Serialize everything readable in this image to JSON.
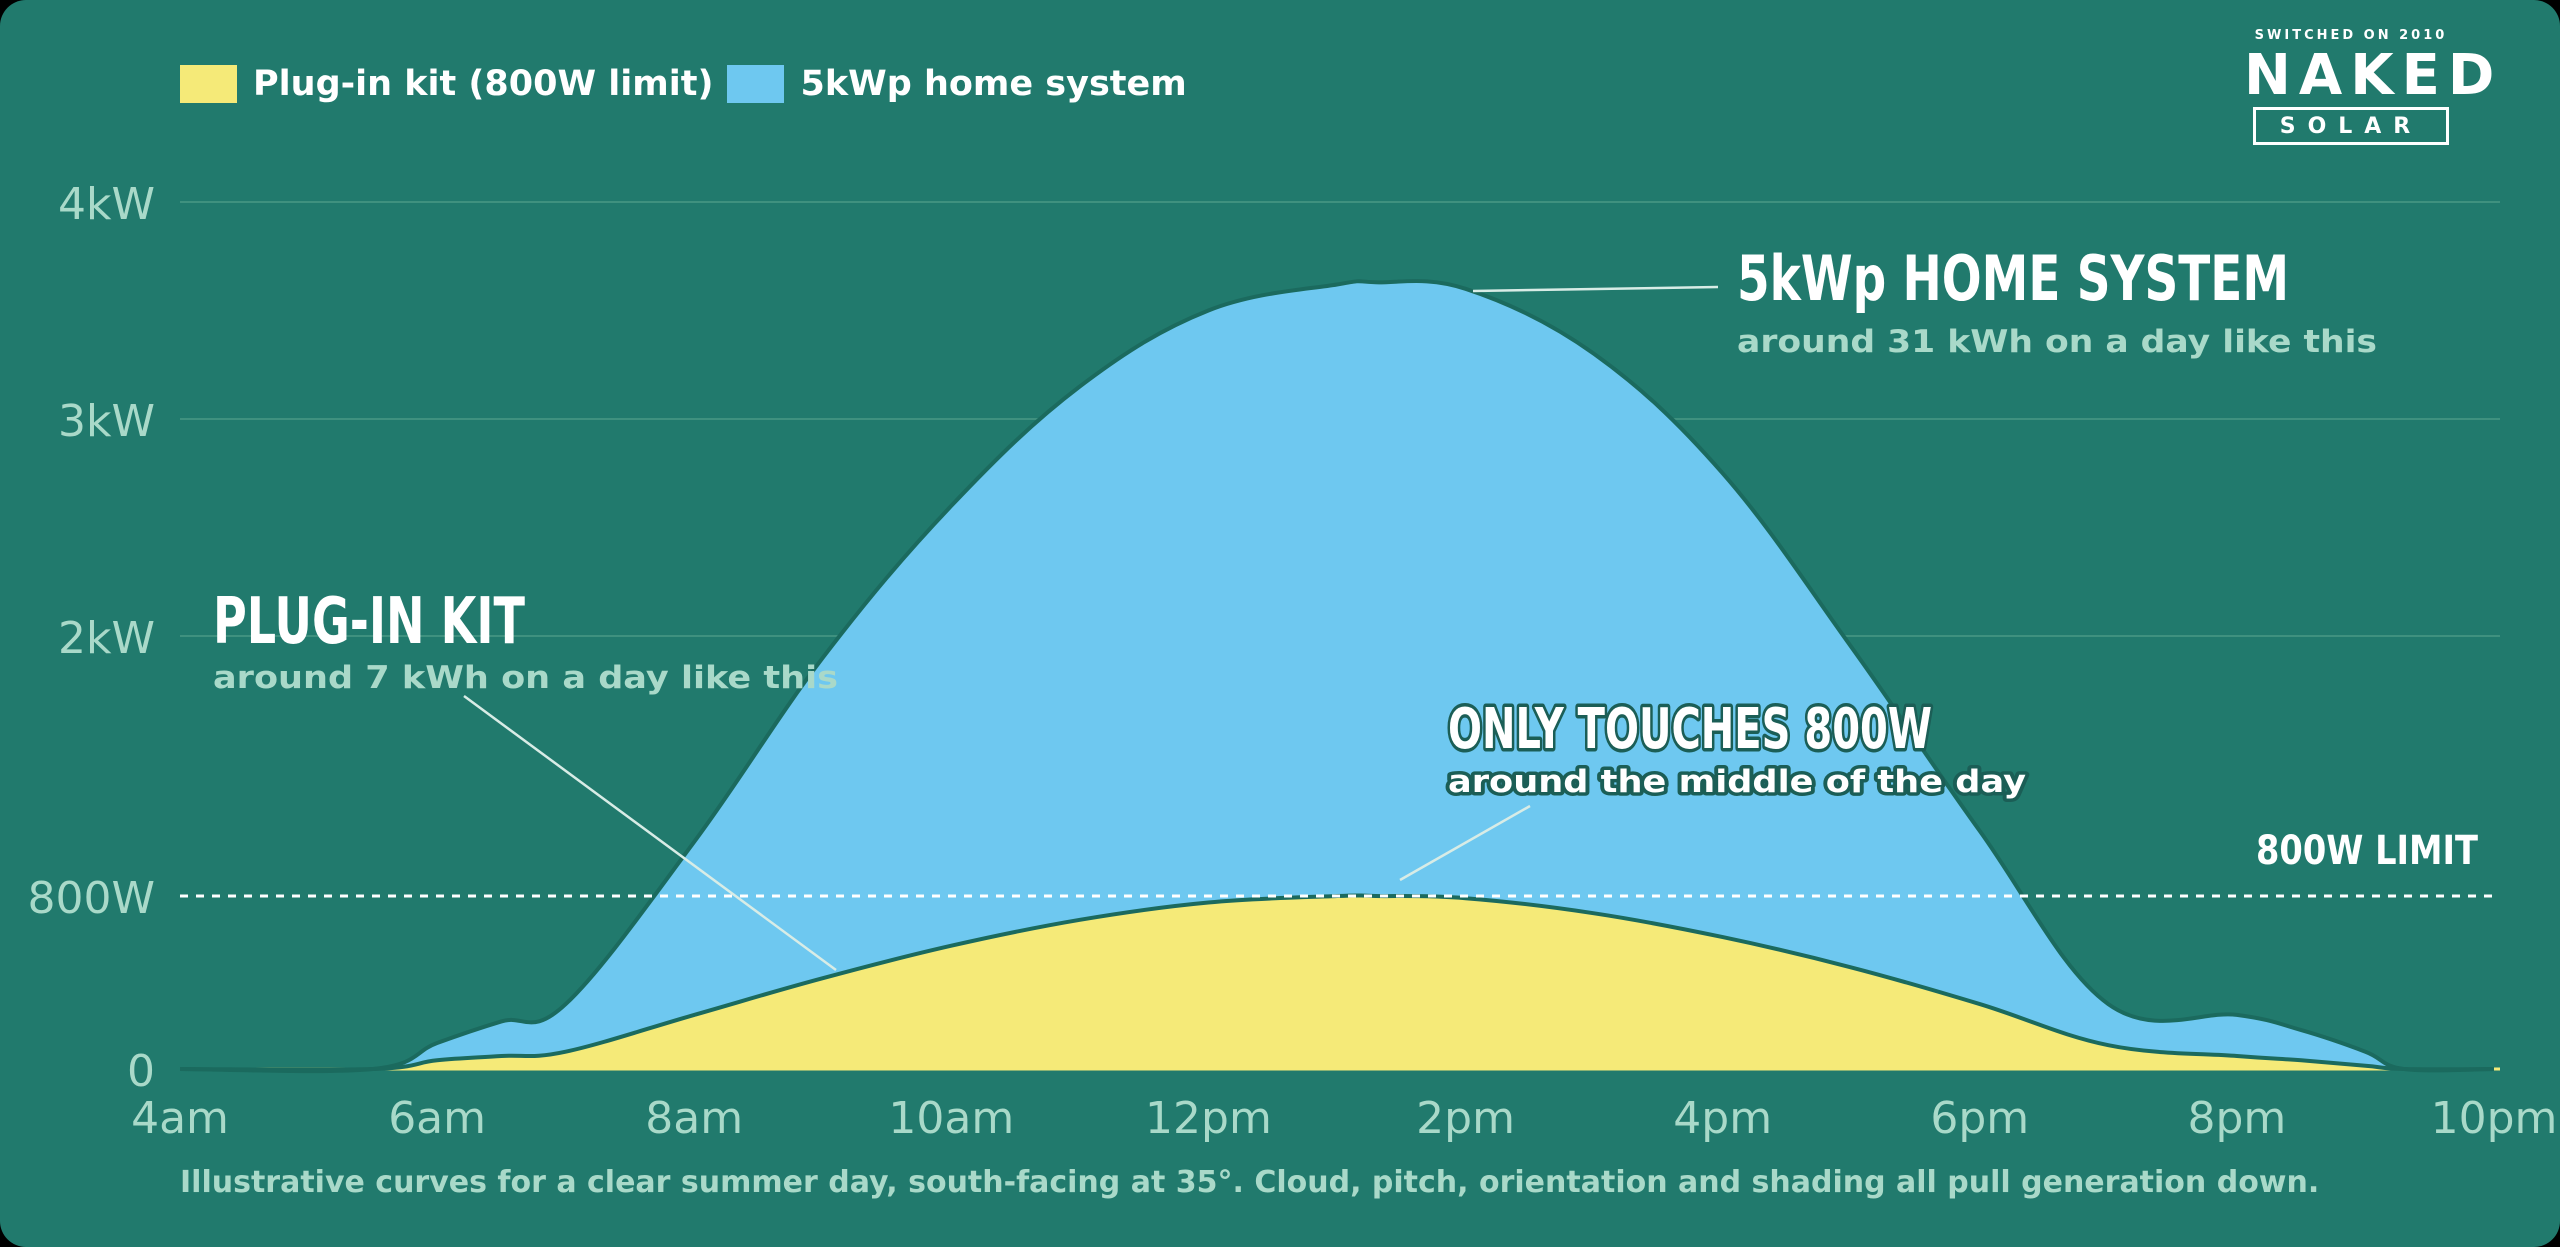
{
  "legend": [
    {
      "label": "Plug-in kit (800W limit)",
      "color": "#f5ea78"
    },
    {
      "label": "5kWp home system",
      "color": "#6ec8f0"
    }
  ],
  "logo": {
    "tagline": "SWITCHED ON 2010",
    "name": "NAKED",
    "sub": "SOLAR"
  },
  "annotations": {
    "home": {
      "title": "5kWp HOME SYSTEM",
      "subtitle": "around 31 kWh on a day like this"
    },
    "kit": {
      "title": "PLUG-IN KIT",
      "subtitle": "around 7 kWh on a day like this"
    },
    "peak": {
      "title": "ONLY TOUCHES 800W",
      "subtitle": "around the middle of the day"
    },
    "limit": {
      "label": "800W LIMIT"
    }
  },
  "footnote": "Illustrative curves for a clear summer day, south-facing at 35°. Cloud, pitch, orientation and shading all pull generation down.",
  "chart_data": {
    "type": "area",
    "xlabel": "",
    "ylabel": "",
    "x_ticks": [
      "4am",
      "6am",
      "8am",
      "10am",
      "12pm",
      "2pm",
      "4pm",
      "6pm",
      "8pm",
      "10pm"
    ],
    "y_ticks": [
      {
        "value": 0,
        "label": "0"
      },
      {
        "value": 800,
        "label": "800W"
      },
      {
        "value": 2000,
        "label": "2kW"
      },
      {
        "value": 3000,
        "label": "3kW"
      },
      {
        "value": 4000,
        "label": "4kW"
      }
    ],
    "xlim": [
      4,
      22
    ],
    "ylim": [
      0,
      4000
    ],
    "reference_line": {
      "value": 800,
      "label": "800W LIMIT"
    },
    "grid": true,
    "legend_position": "top-left",
    "series": [
      {
        "name": "5kWp home system",
        "color": "#6ec8f0",
        "x": [
          4,
          5.5,
          6,
          6.5,
          7,
          8,
          9,
          10,
          11,
          12,
          13,
          13.3,
          14,
          15,
          16,
          17,
          18,
          19,
          20,
          20.5,
          21,
          21.3,
          22
        ],
        "y": [
          0,
          0,
          120,
          220,
          300,
          1050,
          1900,
          2600,
          3150,
          3500,
          3620,
          3630,
          3600,
          3300,
          2750,
          1950,
          1100,
          300,
          250,
          180,
          80,
          0,
          0
        ]
      },
      {
        "name": "Plug-in kit (800W limit)",
        "color": "#f5ea78",
        "x": [
          4,
          5.5,
          6,
          6.5,
          7,
          8,
          9,
          10,
          11,
          12,
          13,
          13.3,
          14,
          15,
          16,
          17,
          18,
          19,
          20,
          20.5,
          21,
          21.3,
          22
        ],
        "y": [
          0,
          0,
          40,
          60,
          80,
          250,
          420,
          570,
          690,
          770,
          800,
          800,
          790,
          720,
          610,
          470,
          300,
          110,
          60,
          40,
          15,
          0,
          0
        ]
      }
    ]
  }
}
